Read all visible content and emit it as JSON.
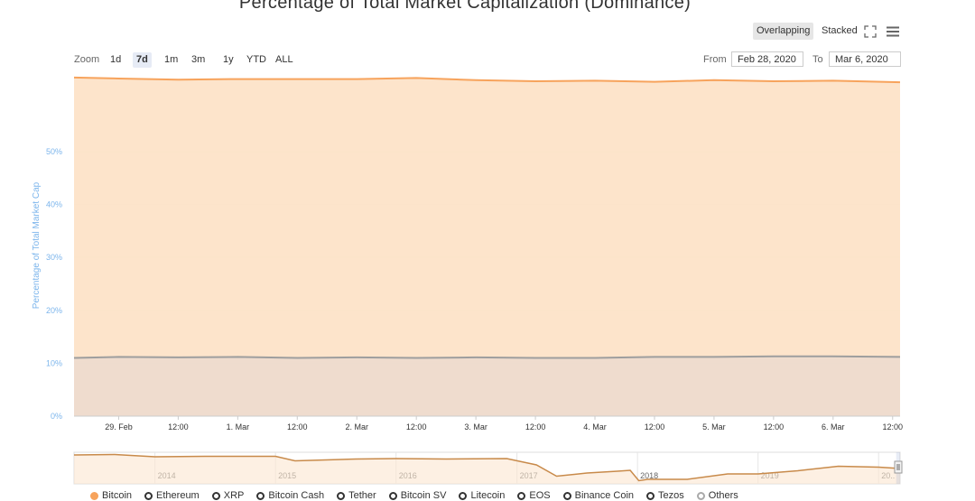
{
  "header": {
    "title": "Percentage of Total Market Capitalization (Dominance)",
    "modes": {
      "overlapping": "Overlapping",
      "stacked": "Stacked",
      "active": "overlapping"
    }
  },
  "zoom": {
    "label": "Zoom",
    "buttons": [
      "1d",
      "7d",
      "1m",
      "3m",
      "1y",
      "YTD",
      "ALL"
    ],
    "active": "7d"
  },
  "range": {
    "from_label": "From",
    "from": "Feb 28, 2020",
    "to_label": "To",
    "to": "Mar 6, 2020"
  },
  "icons": {
    "fullscreen": "fullscreen-icon",
    "menu": "menu-icon"
  },
  "chart_data": {
    "type": "area",
    "title": "Percentage of Total Market Capitalization (Dominance)",
    "ylabel": "Percentage of Total Market Cap",
    "xlabel": "",
    "ylim": [
      0,
      65
    ],
    "yticks": [
      0,
      10,
      20,
      30,
      40,
      50
    ],
    "ytick_labels": [
      "0%",
      "10%",
      "20%",
      "30%",
      "40%",
      "50%"
    ],
    "xrange": [
      "2020-02-28T15:00",
      "2020-03-06T13:30"
    ],
    "xticks": [
      {
        "t": "2020-02-29T00:00",
        "label": "29. Feb"
      },
      {
        "t": "2020-02-29T12:00",
        "label": "12:00"
      },
      {
        "t": "2020-03-01T00:00",
        "label": "1. Mar"
      },
      {
        "t": "2020-03-01T12:00",
        "label": "12:00"
      },
      {
        "t": "2020-03-02T00:00",
        "label": "2. Mar"
      },
      {
        "t": "2020-03-02T12:00",
        "label": "12:00"
      },
      {
        "t": "2020-03-03T00:00",
        "label": "3. Mar"
      },
      {
        "t": "2020-03-03T12:00",
        "label": "12:00"
      },
      {
        "t": "2020-03-04T00:00",
        "label": "4. Mar"
      },
      {
        "t": "2020-03-04T12:00",
        "label": "12:00"
      },
      {
        "t": "2020-03-05T00:00",
        "label": "5. Mar"
      },
      {
        "t": "2020-03-05T12:00",
        "label": "12:00"
      },
      {
        "t": "2020-03-06T00:00",
        "label": "6. Mar"
      },
      {
        "t": "2020-03-06T12:00",
        "label": "12:00"
      }
    ],
    "grid": true,
    "series": [
      {
        "color": "#f7a35c",
        "x": [
          "2020-02-28T15:00",
          "2020-02-29T00:00",
          "2020-02-29T12:00",
          "2020-03-01T00:00",
          "2020-03-01T12:00",
          "2020-03-02T00:00",
          "2020-03-02T12:00",
          "2020-03-03T00:00",
          "2020-03-03T12:00",
          "2020-03-04T00:00",
          "2020-03-04T12:00",
          "2020-03-05T00:00",
          "2020-03-05T12:00",
          "2020-03-06T00:00",
          "2020-03-06T13:30"
        ],
        "values": [
          64.0,
          63.8,
          63.6,
          63.7,
          63.7,
          63.7,
          63.9,
          63.5,
          63.3,
          63.4,
          63.2,
          63.5,
          63.3,
          63.4,
          63.1
        ]
      },
      {
        "color": "#9e9e9e",
        "x": [
          "2020-02-28T15:00",
          "2020-02-29T00:00",
          "2020-02-29T12:00",
          "2020-03-01T00:00",
          "2020-03-01T12:00",
          "2020-03-02T00:00",
          "2020-03-02T12:00",
          "2020-03-03T00:00",
          "2020-03-03T12:00",
          "2020-03-04T00:00",
          "2020-03-04T12:00",
          "2020-03-05T00:00",
          "2020-03-05T12:00",
          "2020-03-06T00:00",
          "2020-03-06T13:30"
        ],
        "values": [
          11.0,
          11.2,
          11.1,
          11.2,
          11.0,
          11.1,
          11.0,
          11.1,
          11.0,
          11.0,
          11.2,
          11.2,
          11.3,
          11.3,
          11.2
        ]
      }
    ],
    "navigator": {
      "year_labels": [
        "2014",
        "2015",
        "2016",
        "2017",
        "2018",
        "2019",
        "20.."
      ],
      "xrange": [
        "2013-05-01",
        "2020-03-06"
      ],
      "years": [
        "2014-01-01",
        "2015-01-01",
        "2016-01-01",
        "2017-01-01",
        "2018-01-01",
        "2019-01-01",
        "2020-01-01"
      ],
      "ylim": [
        30,
        100
      ],
      "x": [
        "2013-05-01",
        "2013-09-01",
        "2014-01-01",
        "2014-06-01",
        "2015-01-01",
        "2015-03-01",
        "2015-09-01",
        "2016-01-01",
        "2016-06-01",
        "2016-12-01",
        "2017-03-01",
        "2017-05-01",
        "2017-08-01",
        "2017-11-01",
        "2017-12-10",
        "2018-01-05",
        "2018-02-01",
        "2018-06-01",
        "2018-10-01",
        "2019-01-01",
        "2019-05-01",
        "2019-09-01",
        "2020-01-01",
        "2020-03-06"
      ],
      "values": [
        94,
        95,
        90,
        91,
        91,
        81,
        85,
        86,
        85,
        86,
        72,
        47,
        54,
        58,
        60,
        37,
        40,
        40,
        52,
        52,
        59,
        69,
        67,
        64
      ]
    }
  },
  "legend": {
    "items": [
      {
        "label": "Bitcoin",
        "color": "#f7a35c"
      },
      {
        "label": "Ethereum",
        "color": "#333333"
      },
      {
        "label": "XRP",
        "color": "#333333"
      },
      {
        "label": "Bitcoin Cash",
        "color": "#333333"
      },
      {
        "label": "Tether",
        "color": "#333333"
      },
      {
        "label": "Bitcoin SV",
        "color": "#333333"
      },
      {
        "label": "Litecoin",
        "color": "#333333"
      },
      {
        "label": "EOS",
        "color": "#333333"
      },
      {
        "label": "Binance Coin",
        "color": "#333333"
      },
      {
        "label": "Tezos",
        "color": "#333333"
      },
      {
        "label": "Others",
        "color": "#aaaaaa"
      }
    ]
  }
}
